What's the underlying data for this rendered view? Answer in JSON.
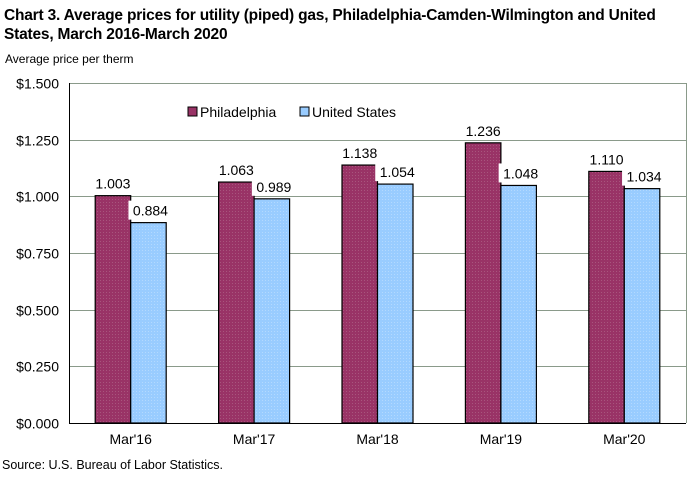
{
  "chart_data": {
    "type": "bar",
    "title": "Chart 3. Average prices for utility (piped) gas, Philadelphia-Camden-Wilmington and United States, March 2016-March 2020",
    "xlabel": "",
    "ylabel": "Average price per therm",
    "ylim": [
      0,
      1.5
    ],
    "yticks": [
      0,
      0.25,
      0.5,
      0.75,
      1.0,
      1.25,
      1.5
    ],
    "ytick_labels": [
      "$0.000",
      "$0.250",
      "$0.500",
      "$0.750",
      "$1.000",
      "$1.250",
      "$1.500"
    ],
    "grid": true,
    "legend_position": "top-center",
    "categories": [
      "Mar'16",
      "Mar'17",
      "Mar'18",
      "Mar'19",
      "Mar'20"
    ],
    "series": [
      {
        "name": "Philadelphia",
        "color": "#993366",
        "values": [
          1.003,
          1.063,
          1.138,
          1.236,
          1.11
        ],
        "labels": [
          "1.003",
          "1.063",
          "1.138",
          "1.236",
          "1.110"
        ]
      },
      {
        "name": "United States",
        "color": "#99ccff",
        "values": [
          0.884,
          0.989,
          1.054,
          1.048,
          1.034
        ],
        "labels": [
          "0.884",
          "0.989",
          "1.054",
          "1.048",
          "1.034"
        ]
      }
    ]
  },
  "source": "Source: U.S. Bureau of Labor Statistics."
}
